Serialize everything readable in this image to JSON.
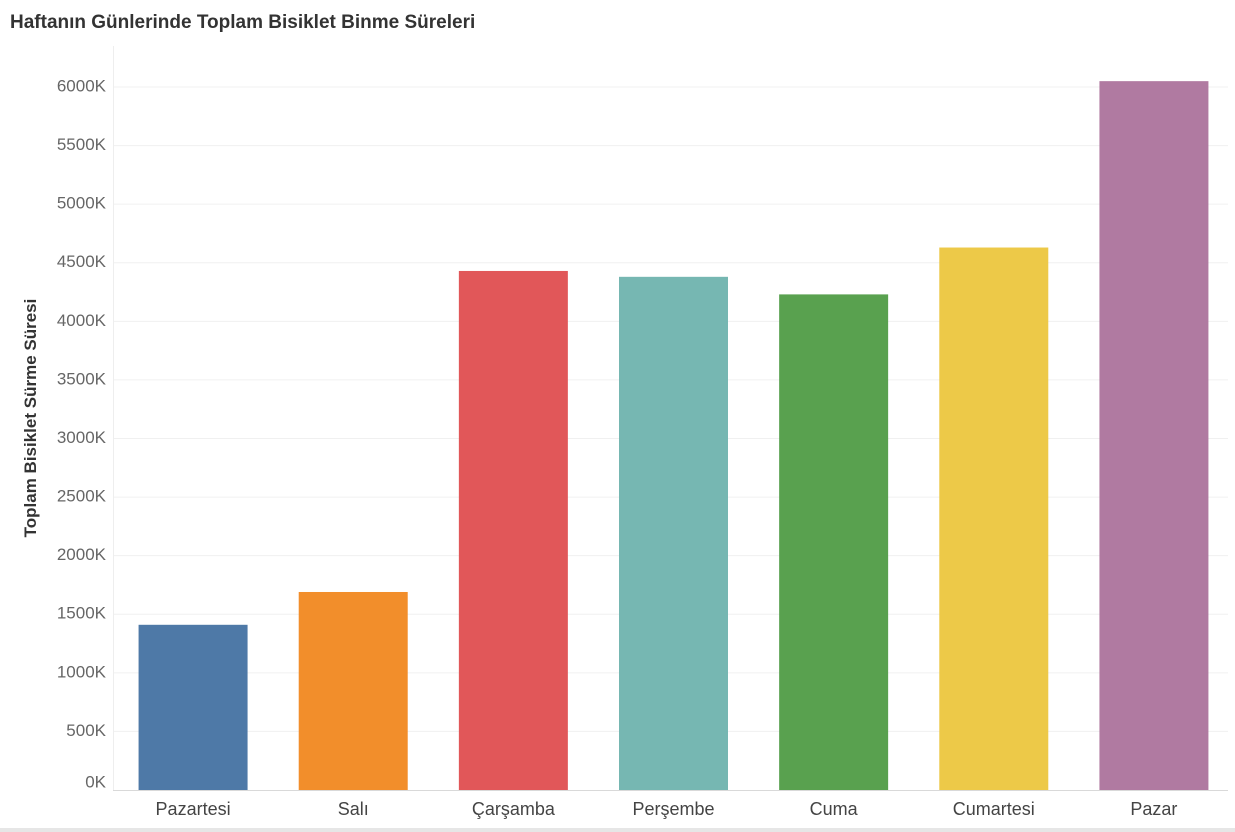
{
  "chart_data": {
    "type": "bar",
    "title": "Haftanın Günlerinde Toplam Bisiklet Binme Süreleri",
    "ylabel": "Toplam Bisiklet Sürme Süresi",
    "xlabel": "",
    "categories": [
      "Pazartesi",
      "Salı",
      "Çarşamba",
      "Perşembe",
      "Cuma",
      "Cumartesi",
      "Pazar"
    ],
    "values": [
      1410,
      1690,
      4430,
      4380,
      4230,
      4630,
      6050
    ],
    "colors": [
      "#4e79a7",
      "#f28e2b",
      "#e15759",
      "#76b7b2",
      "#59a14f",
      "#edc948",
      "#b07aa1"
    ],
    "ylim": [
      0,
      6350
    ],
    "yticks": [
      0,
      500,
      1000,
      1500,
      2000,
      2500,
      3000,
      3500,
      4000,
      4500,
      5000,
      5500,
      6000
    ],
    "ytick_labels": [
      "0K",
      "500K",
      "1000K",
      "1500K",
      "2000K",
      "2500K",
      "3000K",
      "3500K",
      "4000K",
      "4500K",
      "5000K",
      "5500K",
      "6000K"
    ],
    "grid": true,
    "legend": "none"
  }
}
